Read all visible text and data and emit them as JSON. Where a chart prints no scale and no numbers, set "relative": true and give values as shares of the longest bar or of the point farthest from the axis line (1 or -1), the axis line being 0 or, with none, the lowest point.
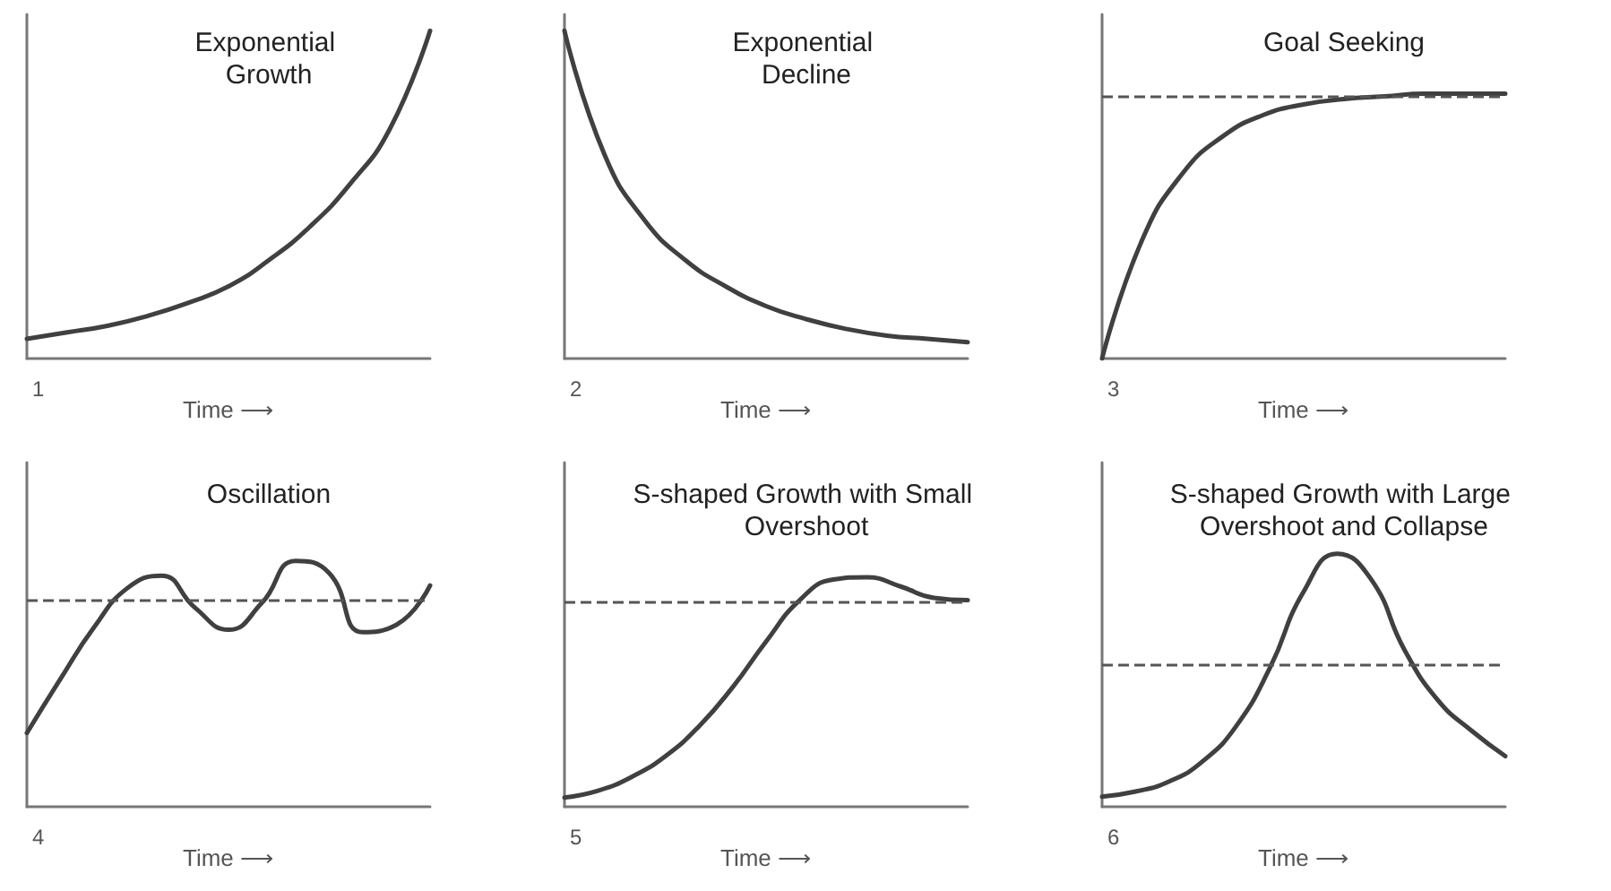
{
  "chart_data": [
    {
      "type": "line",
      "title": "Exponential Growth",
      "xlabel": "Time ⟶",
      "annotations": [
        "1"
      ],
      "relative": true,
      "marker": "none",
      "categories": [
        null,
        null,
        null,
        null,
        null,
        null,
        null,
        null,
        null,
        null,
        null
      ],
      "series": [
        {
          "color": "#404040",
          "values": [
            0.06,
            0.08,
            0.1,
            0.13,
            0.17,
            0.22,
            0.3,
            0.4,
            0.53,
            0.7,
            1.0
          ]
        }
      ]
    },
    {
      "type": "line",
      "title": "Exponential Decline",
      "xlabel": "Time ⟶",
      "annotations": [
        "2"
      ],
      "relative": true,
      "marker": "none",
      "categories": [
        null,
        null,
        null,
        null,
        null,
        null,
        null,
        null,
        null,
        null,
        null
      ],
      "series": [
        {
          "color": "#404040",
          "values": [
            1.0,
            0.62,
            0.42,
            0.3,
            0.22,
            0.16,
            0.12,
            0.09,
            0.07,
            0.06,
            0.05
          ]
        }
      ]
    },
    {
      "type": "line",
      "title": "Goal Seeking",
      "xlabel": "Time ⟶",
      "annotations": [
        "3"
      ],
      "relative": true,
      "marker": "none",
      "categories": [
        null,
        null,
        null,
        null,
        null,
        null,
        null,
        null,
        null,
        null,
        null
      ],
      "series": [
        {
          "color": "#404040",
          "values": [
            0,
            0.45,
            0.7,
            0.84,
            0.92,
            0.96,
            0.98,
            0.99,
            1.0,
            1.0,
            1.0
          ]
        }
      ],
      "ref_lines": [
        {
          "axis": "y",
          "value": 0.99,
          "line_style": "dashed",
          "color": "#555555"
        }
      ]
    },
    {
      "type": "line",
      "title": "Oscillation",
      "xlabel": "Time ⟶",
      "annotations": [
        "4"
      ],
      "relative": true,
      "marker": "none",
      "categories": [
        null,
        null,
        null,
        null,
        null,
        null,
        null,
        null,
        null,
        null,
        null,
        null,
        null
      ],
      "series": [
        {
          "color": "#404040",
          "values": [
            0.3,
            0.52,
            0.73,
            0.89,
            0.94,
            0.81,
            0.72,
            0.83,
            1.0,
            0.95,
            0.71,
            0.74,
            0.9
          ]
        }
      ],
      "ref_lines": [
        {
          "axis": "y",
          "value": 0.84,
          "line_style": "dashed",
          "color": "#555555"
        }
      ]
    },
    {
      "type": "line",
      "title": "S-shaped Growth with Small Overshoot",
      "xlabel": "Time ⟶",
      "annotations": [
        "5"
      ],
      "relative": true,
      "marker": "none",
      "categories": [
        null,
        null,
        null,
        null,
        null,
        null,
        null,
        null,
        null,
        null,
        null,
        null,
        null
      ],
      "series": [
        {
          "color": "#404040",
          "values": [
            0.04,
            0.07,
            0.13,
            0.22,
            0.35,
            0.52,
            0.72,
            0.9,
            0.99,
            1.0,
            0.96,
            0.91,
            0.9
          ]
        }
      ],
      "ref_lines": [
        {
          "axis": "y",
          "value": 0.89,
          "line_style": "dashed",
          "color": "#555555"
        }
      ]
    },
    {
      "type": "line",
      "title": "S-shaped Growth with Large Overshoot and Collapse",
      "xlabel": "Time ⟶",
      "annotations": [
        "6"
      ],
      "relative": true,
      "marker": "none",
      "categories": [
        null,
        null,
        null,
        null,
        null,
        null,
        null,
        null,
        null,
        null,
        null,
        null,
        null
      ],
      "series": [
        {
          "color": "#404040",
          "values": [
            0.04,
            0.06,
            0.1,
            0.18,
            0.32,
            0.55,
            0.85,
            1.0,
            0.9,
            0.62,
            0.42,
            0.3,
            0.2
          ]
        }
      ],
      "ref_lines": [
        {
          "axis": "y",
          "value": 0.56,
          "line_style": "dashed",
          "color": "#555555"
        }
      ]
    }
  ]
}
